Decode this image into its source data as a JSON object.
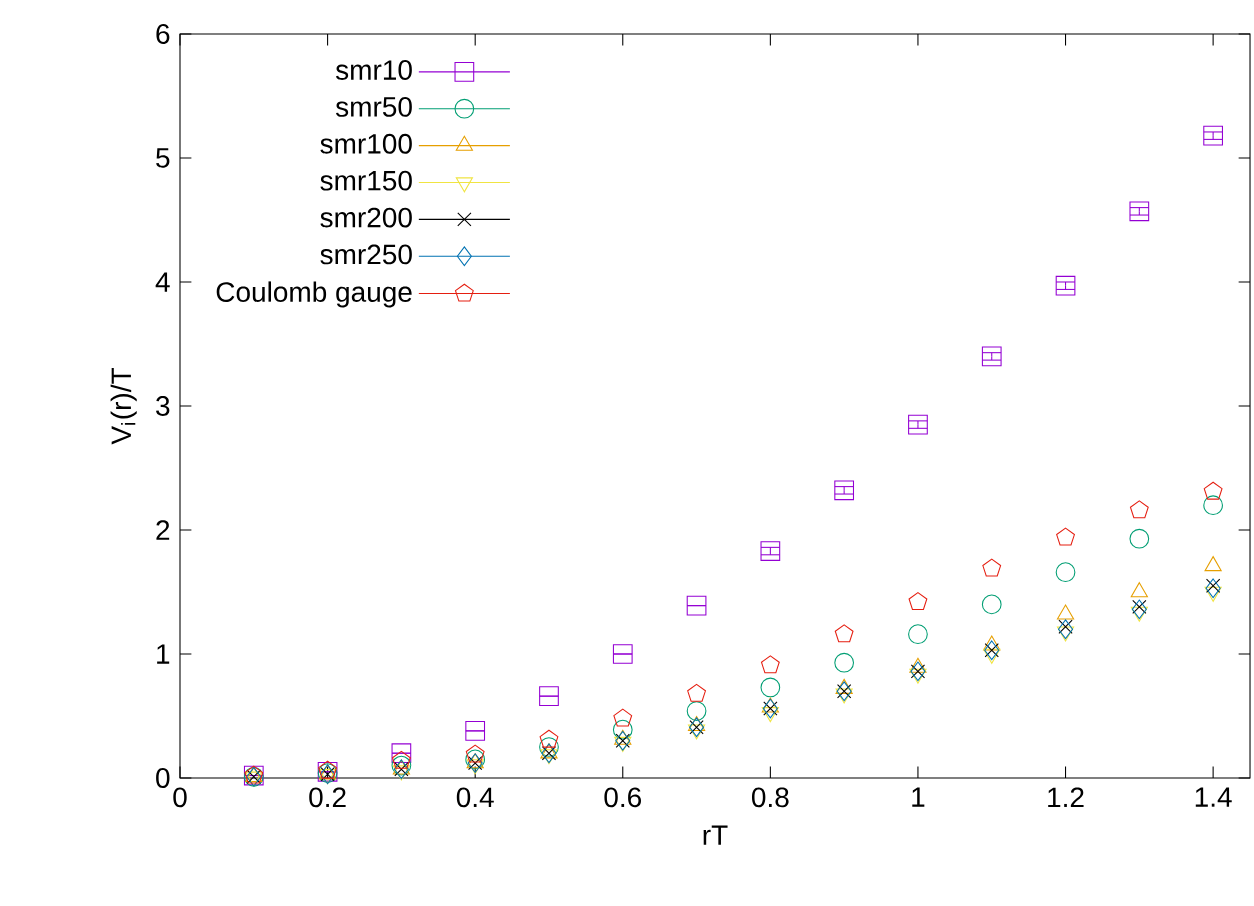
{
  "chart_data": {
    "type": "scatter",
    "xlabel": "rT",
    "ylabel": "V$_{i}$(r)/T",
    "x": [
      0.1,
      0.2,
      0.3,
      0.4,
      0.5,
      0.6,
      0.7,
      0.8,
      0.9,
      1.0,
      1.1,
      1.2,
      1.3,
      1.4
    ],
    "xlim": [
      0,
      1.45
    ],
    "ylim": [
      0,
      6
    ],
    "xticks": [
      0,
      0.2,
      0.4,
      0.6,
      0.8,
      1,
      1.2,
      1.4
    ],
    "yticks": [
      0,
      1,
      2,
      3,
      4,
      5,
      6
    ],
    "grid": false,
    "legend": "top left",
    "series": [
      {
        "name": "smr10",
        "color": "#9400d3",
        "marker": "square",
        "values": [
          0.02,
          0.05,
          0.2,
          0.38,
          0.66,
          1.0,
          1.39,
          1.83,
          2.32,
          2.85,
          3.4,
          3.97,
          4.57,
          5.18
        ],
        "errors": [
          null,
          null,
          null,
          null,
          null,
          null,
          null,
          0.03,
          0.03,
          0.03,
          0.03,
          0.03,
          0.03,
          0.03
        ]
      },
      {
        "name": "smr50",
        "color": "#009e73",
        "marker": "circle",
        "values": [
          0.01,
          0.04,
          0.1,
          0.15,
          0.25,
          0.39,
          0.54,
          0.73,
          0.93,
          1.16,
          1.4,
          1.66,
          1.93,
          2.2
        ]
      },
      {
        "name": "smr100",
        "color": "#e69f00",
        "marker": "triangle",
        "values": [
          0.01,
          0.03,
          0.07,
          0.12,
          0.2,
          0.31,
          0.42,
          0.57,
          0.72,
          0.89,
          1.07,
          1.32,
          1.5,
          1.71
        ]
      },
      {
        "name": "smr150",
        "color": "#f0e442",
        "marker": "triangle-down",
        "values": [
          0.01,
          0.03,
          0.06,
          0.11,
          0.19,
          0.29,
          0.39,
          0.53,
          0.68,
          0.84,
          1.0,
          1.18,
          1.34,
          1.5
        ]
      },
      {
        "name": "smr200",
        "color": "#000000",
        "marker": "cross",
        "values": [
          0.01,
          0.03,
          0.07,
          0.12,
          0.2,
          0.3,
          0.41,
          0.56,
          0.7,
          0.86,
          1.03,
          1.22,
          1.38,
          1.55
        ]
      },
      {
        "name": "smr250",
        "color": "#0072b2",
        "marker": "diamond",
        "values": [
          0.01,
          0.03,
          0.07,
          0.12,
          0.2,
          0.3,
          0.41,
          0.56,
          0.7,
          0.86,
          1.03,
          1.2,
          1.36,
          1.53
        ]
      },
      {
        "name": "Coulomb gauge",
        "color": "#e51e10",
        "values": [
          0.02,
          0.06,
          0.14,
          0.19,
          0.31,
          0.48,
          0.68,
          0.91,
          1.16,
          1.42,
          1.69,
          1.94,
          2.16,
          2.31
        ]
      }
    ]
  }
}
